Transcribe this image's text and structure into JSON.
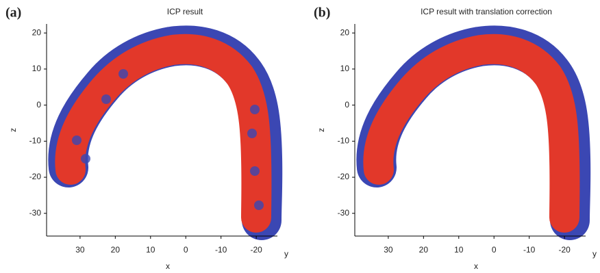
{
  "chart_data": [
    {
      "type": "scatter",
      "panel": "(a)",
      "title": "ICP result",
      "xlabel": "x",
      "ylabel": "z",
      "depth_label": "y",
      "xlim": [
        39.5,
        -26
      ],
      "ylim": [
        -36.3,
        22.5
      ],
      "xticks": [
        30,
        20,
        10,
        0,
        -10,
        -20
      ],
      "yticks": [
        20,
        10,
        0,
        -10,
        -20,
        -30
      ],
      "colors": [
        "#3b47b3",
        "#e2382a"
      ]
    },
    {
      "type": "scatter",
      "panel": "(b)",
      "title": "ICP result with translation correction",
      "xlabel": "x",
      "ylabel": "z",
      "depth_label": "y",
      "xlim": [
        39.5,
        -26
      ],
      "ylim": [
        -36.3,
        22.5
      ],
      "xticks": [
        30,
        20,
        10,
        0,
        -10,
        -20
      ],
      "yticks": [
        20,
        10,
        0,
        -10,
        -20,
        -30
      ],
      "colors": [
        "#3b47b3",
        "#e2382a"
      ]
    }
  ]
}
